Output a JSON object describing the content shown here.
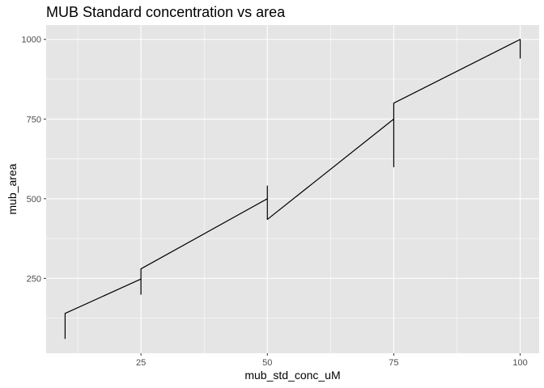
{
  "chart_data": {
    "type": "line",
    "title": "MUB Standard concentration vs area",
    "xlabel": "mub_std_conc_uM",
    "ylabel": "mub_area",
    "xlim": [
      6.25,
      103.75
    ],
    "ylim": [
      15,
      1045
    ],
    "x_ticks": [
      25,
      50,
      75,
      100
    ],
    "y_ticks": [
      250,
      500,
      750,
      1000
    ],
    "grid": true,
    "legend": "none",
    "series": [
      {
        "points": [
          {
            "x": 10,
            "y": 60
          },
          {
            "x": 10,
            "y": 140
          },
          {
            "x": 25,
            "y": 248
          },
          {
            "x": 25,
            "y": 200
          },
          {
            "x": 25,
            "y": 280
          },
          {
            "x": 50,
            "y": 500
          },
          {
            "x": 50,
            "y": 540
          },
          {
            "x": 50,
            "y": 435
          },
          {
            "x": 75,
            "y": 750
          },
          {
            "x": 75,
            "y": 600
          },
          {
            "x": 75,
            "y": 800
          },
          {
            "x": 100,
            "y": 1000
          },
          {
            "x": 100,
            "y": 940
          }
        ]
      }
    ],
    "colors": {
      "panel_background": "#e5e5e5",
      "grid_major": "#ffffff",
      "line": "#000000",
      "tick_label": "#4d4d4d"
    }
  }
}
